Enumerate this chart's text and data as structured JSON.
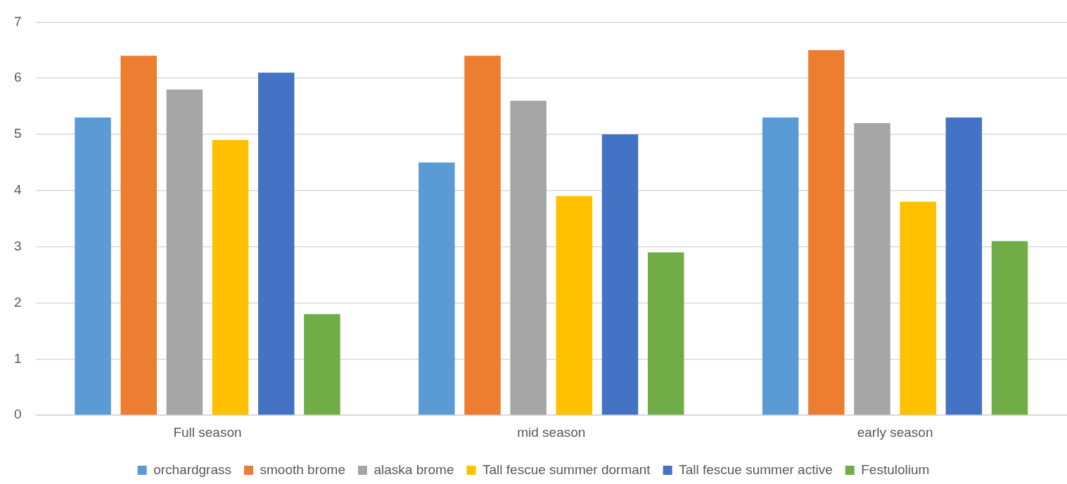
{
  "chart_data": {
    "type": "bar",
    "categories": [
      "Full season",
      "mid season",
      "early season"
    ],
    "series": [
      {
        "name": "orchardgrass",
        "color": "#5b9bd5",
        "values": [
          5.3,
          4.5,
          5.3
        ]
      },
      {
        "name": "smooth brome",
        "color": "#ed7d31",
        "values": [
          6.4,
          6.4,
          6.5
        ]
      },
      {
        "name": "alaska brome",
        "color": "#a5a5a5",
        "values": [
          5.8,
          5.6,
          5.2
        ]
      },
      {
        "name": "Tall fescue summer dormant",
        "color": "#ffc000",
        "values": [
          4.9,
          3.9,
          3.8
        ]
      },
      {
        "name": "Tall fescue summer active",
        "color": "#4472c4",
        "values": [
          6.1,
          5.0,
          5.3
        ]
      },
      {
        "name": "Festulolium",
        "color": "#70ad47",
        "values": [
          1.8,
          2.9,
          3.1
        ]
      }
    ],
    "ylim": [
      0,
      7
    ],
    "yticks": [
      0,
      1,
      2,
      3,
      4,
      5,
      6,
      7
    ],
    "grid": "y",
    "legend": "bottom"
  }
}
